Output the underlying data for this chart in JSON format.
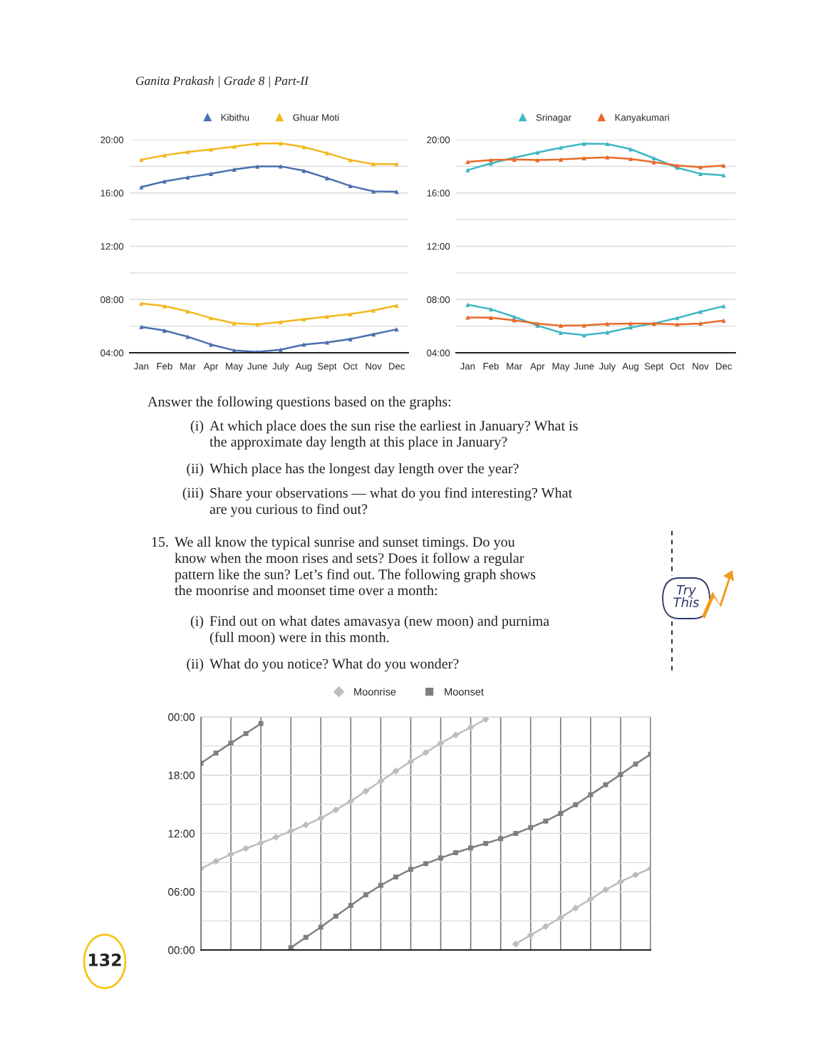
{
  "chart_data": [
    {
      "type": "line",
      "categories": [
        "Jan",
        "Feb",
        "Mar",
        "Apr",
        "May",
        "June",
        "July",
        "Aug",
        "Sept",
        "Oct",
        "Nov",
        "Dec"
      ],
      "marker": "triangle",
      "grid": "y",
      "legend": "top",
      "ylim": [
        4,
        20
      ],
      "yticks": [
        {
          "value": 4,
          "label": "04:00"
        },
        {
          "value": 6,
          "label": null
        },
        {
          "value": 8,
          "label": "08:00"
        },
        {
          "value": 10,
          "label": null
        },
        {
          "value": 12,
          "label": "12:00"
        },
        {
          "value": 14,
          "label": null
        },
        {
          "value": 16,
          "label": "16:00"
        },
        {
          "value": 18,
          "label": null
        },
        {
          "value": 20,
          "label": "20:00"
        }
      ],
      "series": [
        {
          "name": "Kibithu",
          "color": "#4a6fb0",
          "values": [
            16.44,
            16.87,
            17.17,
            17.44,
            17.76,
            17.99,
            18.0,
            17.67,
            17.12,
            16.53,
            16.12,
            16.09
          ]
        },
        {
          "color": "#4a6fb0",
          "values": [
            5.94,
            5.67,
            5.21,
            4.62,
            4.18,
            4.07,
            4.23,
            4.62,
            4.78,
            5.03,
            5.39,
            5.76
          ]
        },
        {
          "name": "Ghuar Moti",
          "color": "#f2b71c",
          "values": [
            18.49,
            18.83,
            19.08,
            19.27,
            19.48,
            19.7,
            19.73,
            19.45,
            18.99,
            18.47,
            18.17,
            18.17
          ]
        },
        {
          "color": "#f2b71c",
          "values": [
            7.7,
            7.5,
            7.11,
            6.6,
            6.22,
            6.13,
            6.31,
            6.52,
            6.72,
            6.9,
            7.18,
            7.54
          ]
        }
      ],
      "annotations": [
        "Ganita Prakash | Grade 8 | Part-II"
      ]
    },
    {
      "type": "line",
      "categories": [
        "Jan",
        "Feb",
        "Mar",
        "Apr",
        "May",
        "June",
        "July",
        "Aug",
        "Sept",
        "Oct",
        "Nov",
        "Dec"
      ],
      "marker": "triangle",
      "grid": "y",
      "legend": "top",
      "ylim": [
        4,
        20
      ],
      "yticks": [
        {
          "value": 4,
          "label": "04:00"
        },
        {
          "value": 6,
          "label": null
        },
        {
          "value": 8,
          "label": "08:00"
        },
        {
          "value": 10,
          "label": null
        },
        {
          "value": 12,
          "label": "12:00"
        },
        {
          "value": 14,
          "label": null
        },
        {
          "value": 16,
          "label": "16:00"
        },
        {
          "value": 18,
          "label": null
        },
        {
          "value": 20,
          "label": "20:00"
        }
      ],
      "series": [
        {
          "name": "Srinagar",
          "color": "#3fb7c4",
          "values": [
            17.72,
            18.22,
            18.65,
            19.04,
            19.4,
            19.7,
            19.68,
            19.29,
            18.61,
            17.9,
            17.44,
            17.33
          ]
        },
        {
          "color": "#3fb7c4",
          "values": [
            7.61,
            7.27,
            6.7,
            6.04,
            5.51,
            5.32,
            5.53,
            5.9,
            6.2,
            6.61,
            7.08,
            7.5
          ]
        },
        {
          "name": "Kanyakumari",
          "color": "#e8692a",
          "values": [
            18.33,
            18.47,
            18.51,
            18.47,
            18.51,
            18.61,
            18.68,
            18.56,
            18.31,
            18.06,
            17.94,
            18.06
          ]
        },
        {
          "color": "#e8692a",
          "values": [
            6.65,
            6.63,
            6.44,
            6.19,
            6.04,
            6.06,
            6.17,
            6.2,
            6.19,
            6.13,
            6.2,
            6.42
          ]
        }
      ],
      "annotations": [
        "Answer the following questions based on the graphs:",
        "(i) At which place does the sun rise the earliest in January? What is\nthe approximate day length at this place in January?",
        "(ii) Which place has the longest day length over the year?",
        "(iii) Share your observations — what do you find interesting? What\nare you curious to find out?"
      ]
    },
    {
      "type": "line",
      "categories": [
        null,
        null,
        null,
        null,
        null,
        null,
        null,
        null,
        null,
        null,
        null,
        null,
        null,
        null,
        null,
        null,
        null,
        null,
        null,
        null,
        null,
        null,
        null,
        null,
        null,
        null,
        null,
        null,
        null,
        null,
        null
      ],
      "grid": true,
      "legend": "top",
      "ylim": [
        0,
        24
      ],
      "yticks": [
        {
          "value": 0,
          "label": "00:00"
        },
        {
          "value": 3,
          "label": null
        },
        {
          "value": 6,
          "label": "06:00"
        },
        {
          "value": 9,
          "label": null
        },
        {
          "value": 12,
          "label": "12:00"
        },
        {
          "value": 15,
          "label": null
        },
        {
          "value": 18,
          "label": "18:00"
        },
        {
          "value": 21,
          "label": null
        },
        {
          "value": 24,
          "label": "00:00"
        }
      ],
      "series": [
        {
          "name": "Moonrise",
          "color": "#bdbdbd",
          "marker": "diamond",
          "values": [
            8.38,
            9.14,
            9.85,
            10.46,
            11.02,
            11.61,
            12.25,
            12.88,
            13.57,
            14.43,
            15.33,
            16.36,
            17.39,
            18.42,
            19.4,
            20.33,
            21.31,
            22.14,
            22.92,
            23.76,
            null,
            null,
            null,
            null,
            null,
            null,
            null,
            null,
            null,
            null,
            null
          ]
        },
        {
          "color": "#bdbdbd",
          "marker": "diamond",
          "values": [
            null,
            null,
            null,
            null,
            null,
            null,
            null,
            null,
            null,
            null,
            null,
            null,
            null,
            null,
            null,
            null,
            null,
            null,
            null,
            null,
            null,
            0.61,
            1.54,
            2.42,
            3.33,
            4.31,
            5.24,
            6.2,
            7.03,
            7.74,
            8.4
          ]
        },
        {
          "name": "Moonset",
          "color": "#7f7f7f",
          "marker": "square",
          "values": [
            19.23,
            20.28,
            21.31,
            22.29,
            23.32,
            null,
            null,
            null,
            null,
            null,
            null,
            null,
            null,
            null,
            null,
            null,
            null,
            null,
            null,
            null,
            null,
            null,
            null,
            null,
            null,
            null,
            null,
            null,
            null,
            null,
            null
          ]
        },
        {
          "color": "#7f7f7f",
          "marker": "square",
          "values": [
            null,
            null,
            null,
            null,
            null,
            null,
            0.24,
            1.3,
            2.35,
            3.48,
            4.58,
            5.68,
            6.66,
            7.52,
            8.3,
            8.89,
            9.48,
            10.02,
            10.51,
            10.97,
            11.46,
            12.0,
            12.61,
            13.27,
            14.06,
            14.96,
            15.99,
            17.02,
            18.07,
            19.15,
            20.16
          ]
        }
      ],
      "annotations": [
        "15. We all know the typical sunrise and sunset timings. Do you\nknow when the moon rises and sets? Does it follow a regular\npattern like the sun? Let’s find out. The following graph shows\nthe moonrise and moonset time over a month:",
        "(i) Find out on what dates amavasya (new moon) and purnima\n(full moon) were in this month.",
        "(ii) What do you notice? What do you wonder?",
        "Try\nThis",
        "132"
      ]
    }
  ]
}
